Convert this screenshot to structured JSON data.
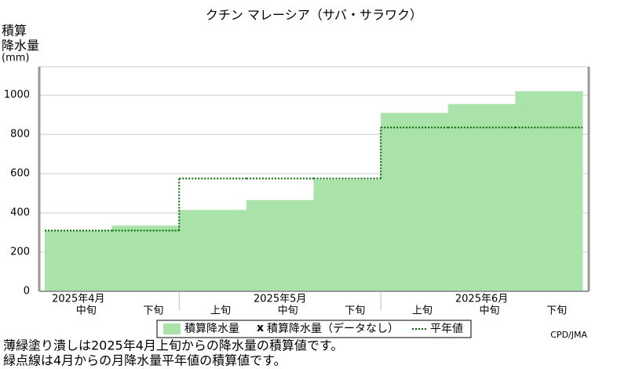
{
  "chart_data": {
    "type": "step_area",
    "title": "クチン マレーシア（サバ・サラワク）",
    "y_label": [
      "積算",
      "降水量",
      "(mm)"
    ],
    "groups": [
      {
        "label": "2025年4月",
        "categories": [
          "中旬",
          "下旬"
        ]
      },
      {
        "label": "2025年5月",
        "categories": [
          "上旬",
          "中旬",
          "下旬"
        ]
      },
      {
        "label": "2025年6月",
        "categories": [
          "上旬",
          "中旬",
          "下旬"
        ]
      }
    ],
    "series": [
      {
        "name": "積算降水量",
        "color": "#aae3aa",
        "values": [
          310,
          335,
          415,
          465,
          570,
          910,
          955,
          1020
        ]
      },
      {
        "name": "平年値",
        "color": "#006400",
        "dash": "2,2",
        "values": [
          310,
          310,
          575,
          575,
          575,
          835,
          835,
          835
        ]
      }
    ],
    "missing_legend": {
      "marker": "x",
      "name": "積算降水量（データなし）"
    },
    "ylim": [
      0,
      1145
    ],
    "yticks": [
      0,
      200,
      400,
      600,
      800,
      1000
    ],
    "grid": true,
    "notes": [
      "薄緑塗り潰しは2025年4月上旬からの降水量の積算値です。",
      "緑点線は4月からの月降水量平年値の積算値です。"
    ],
    "credit": "CPD/JMA"
  }
}
